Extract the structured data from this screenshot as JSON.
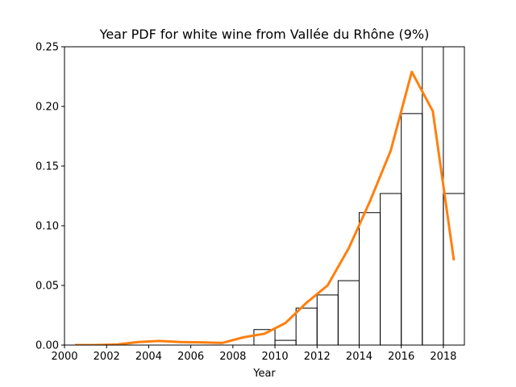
{
  "chart_data": {
    "type": "line",
    "title": "Year PDF for white wine from Vallée du Rhône (9%)",
    "xlabel": "Year",
    "ylabel": "",
    "xlim": [
      2000,
      2019
    ],
    "ylim": [
      0,
      0.25
    ],
    "x_ticks": [
      2000,
      2002,
      2004,
      2006,
      2008,
      2010,
      2012,
      2014,
      2016,
      2018
    ],
    "x_tick_labels": [
      "2000",
      "2002",
      "2004",
      "2006",
      "2008",
      "2010",
      "2012",
      "2014",
      "2016",
      "2018"
    ],
    "y_ticks": [
      0,
      0.05,
      0.1,
      0.15,
      0.2,
      0.25
    ],
    "y_tick_labels": [
      "0.00",
      "0.05",
      "0.10",
      "0.15",
      "0.20",
      "0.25"
    ],
    "grid": false,
    "legend": "none",
    "series": [
      {
        "type": "step-histogram",
        "color": "#000000",
        "bins": [
          {
            "x0": 2009,
            "x1": 2010,
            "y": 0.013
          },
          {
            "x0": 2010,
            "x1": 2011,
            "y": 0.004
          },
          {
            "x0": 2011,
            "x1": 2012,
            "y": 0.031
          },
          {
            "x0": 2012,
            "x1": 2013,
            "y": 0.042
          },
          {
            "x0": 2013,
            "x1": 2014,
            "y": 0.054
          },
          {
            "x0": 2014,
            "x1": 2015,
            "y": 0.111
          },
          {
            "x0": 2015,
            "x1": 2016,
            "y": 0.127
          },
          {
            "x0": 2016,
            "x1": 2017,
            "y": 0.194
          },
          {
            "x0": 2017,
            "x1": 2018,
            "y": 0.26
          },
          {
            "x0": 2018,
            "x1": 2019,
            "y": 0.127
          }
        ]
      },
      {
        "type": "line",
        "color": "#ff7f0e",
        "x": [
          2000.5,
          2001.5,
          2002.5,
          2003.5,
          2004.5,
          2005.5,
          2006.5,
          2007.5,
          2008.5,
          2009.5,
          2010.5,
          2011.5,
          2012.5,
          2013.5,
          2014.5,
          2015.5,
          2016.5,
          2017.5,
          2018.5
        ],
        "y": [
          0.0,
          0.0,
          0.0005,
          0.0025,
          0.0035,
          0.0025,
          0.0023,
          0.0018,
          0.0065,
          0.0095,
          0.0185,
          0.0355,
          0.05,
          0.081,
          0.12,
          0.163,
          0.229,
          0.196,
          0.071
        ]
      }
    ]
  }
}
